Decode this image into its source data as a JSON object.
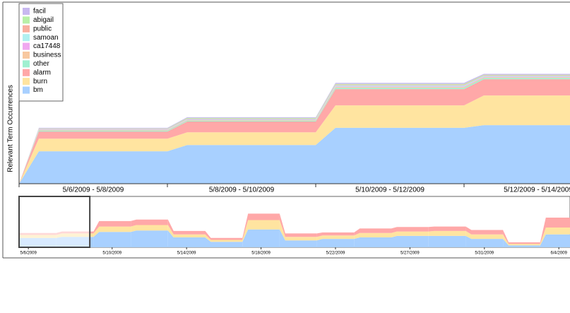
{
  "chart_data": [
    {
      "type": "stacked-area",
      "ylabel": "Relevant Term Occurrences",
      "categories": [
        "5/6/2009 - 5/8/2009",
        "5/8/2009 - 5/10/2009",
        "5/10/2009 - 5/12/2009",
        "5/12/2009 - 5/14/2009"
      ],
      "ylim": [
        0,
        100
      ],
      "legend": "top-left",
      "series": [
        {
          "name": "facil",
          "color": "#c8b8f0",
          "values": [
            0.3,
            0.4,
            0.6,
            0.5
          ]
        },
        {
          "name": "abigail",
          "color": "#b8f0a8",
          "values": [
            0.2,
            0.3,
            0.4,
            0.3
          ]
        },
        {
          "name": "public",
          "color": "#f8b0a0",
          "values": [
            0.2,
            0.3,
            0.4,
            0.3
          ]
        },
        {
          "name": "samoan",
          "color": "#b0f0f0",
          "values": [
            0.3,
            0.4,
            0.6,
            0.5
          ]
        },
        {
          "name": "ca17448",
          "color": "#f0a8f0",
          "values": [
            0.2,
            0.2,
            0.3,
            0.3
          ]
        },
        {
          "name": "business",
          "color": "#f8c8a0",
          "values": [
            0.3,
            0.3,
            0.5,
            0.4
          ]
        },
        {
          "name": "other",
          "color": "#a0f0d0",
          "values": [
            0.5,
            0.5,
            0.7,
            0.7
          ]
        },
        {
          "name": "alarm",
          "color": "#ffa8a8",
          "values": [
            4,
            6,
            9,
            9
          ]
        },
        {
          "name": "burn",
          "color": "#ffe4a0",
          "values": [
            7,
            7,
            12.5,
            16.5
          ]
        },
        {
          "name": "bm",
          "color": "#a8d0ff",
          "values": [
            18,
            21.5,
            31,
            32.5
          ]
        }
      ]
    },
    {
      "type": "stacked-area-overview",
      "xlim": [
        0,
        29.6
      ],
      "ylim": [
        0,
        100
      ],
      "xticks": [
        {
          "value": 0.5,
          "label": "5/6/2009"
        },
        {
          "value": 5,
          "label": "5/10/2009"
        },
        {
          "value": 9,
          "label": "5/14/2009"
        },
        {
          "value": 13,
          "label": "5/18/2009"
        },
        {
          "value": 17,
          "label": "5/22/2009"
        },
        {
          "value": 21,
          "label": "5/27/2009"
        },
        {
          "value": 25,
          "label": "5/31/2009"
        },
        {
          "value": 29,
          "label": "6/4/2009"
        }
      ],
      "x": [
        0,
        2,
        4,
        6,
        8,
        10,
        12,
        14,
        16,
        18,
        20,
        22,
        24,
        26,
        28
      ],
      "series": [
        {
          "color": "#ffa8a8",
          "values": [
            4,
            4,
            11,
            11,
            7,
            4,
            13,
            7,
            6,
            9,
            9,
            9,
            9,
            3,
            20
          ]
        },
        {
          "color": "#ffe4a0",
          "values": [
            6,
            7,
            11,
            11,
            6,
            4,
            19,
            7,
            7,
            9,
            9,
            10,
            9,
            3,
            14
          ]
        },
        {
          "color": "#a8d0ff",
          "values": [
            19,
            21,
            31,
            34,
            20,
            11,
            36,
            14,
            17,
            20,
            23,
            23,
            17,
            4,
            26
          ]
        }
      ],
      "selection": [
        0,
        3.8
      ]
    }
  ]
}
